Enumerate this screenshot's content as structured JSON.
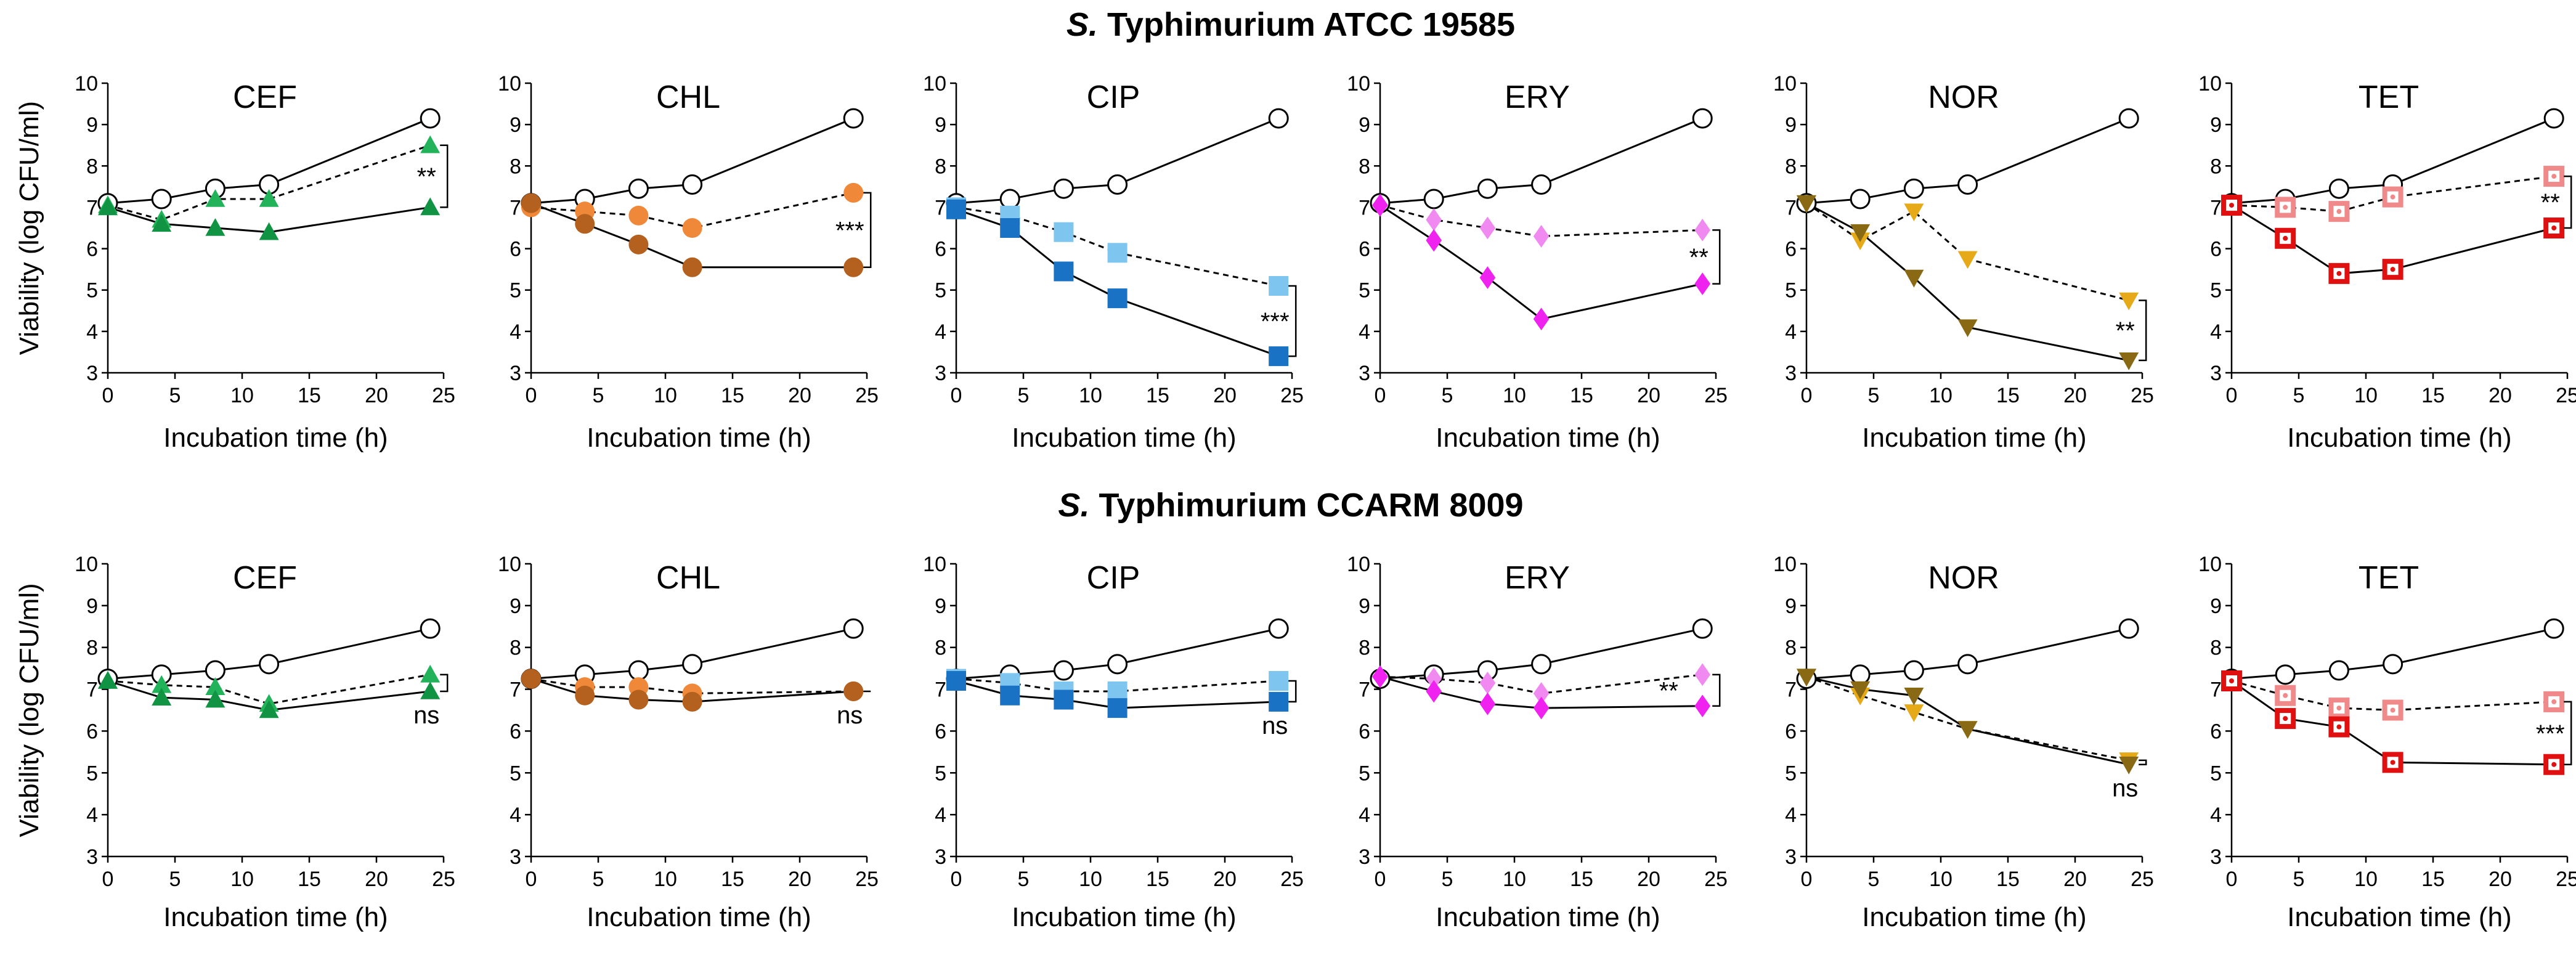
{
  "chart_data": {
    "type": "line",
    "row_titles": [
      {
        "italic": "S.",
        "rest": " Typhimurium ATCC 19585"
      },
      {
        "italic": "S.",
        "rest": " Typhimurium CCARM 8009"
      }
    ],
    "ylabel": "Viability (log CFU/ml)",
    "xlabel": "Incubation time (h)",
    "x": [
      0,
      4,
      8,
      12,
      24
    ],
    "xlim": [
      0,
      25
    ],
    "ylim": [
      3,
      10
    ],
    "xticks": [
      "0",
      "5",
      "10",
      "15",
      "20",
      "25"
    ],
    "yticks": [
      "3",
      "4",
      "5",
      "6",
      "7",
      "8",
      "9",
      "10"
    ],
    "series_legend": {
      "control": "open circles, solid line",
      "treated_before": "light marker, dashed line",
      "treated_after": "dark marker, solid line"
    },
    "rows": [
      {
        "panels": [
          {
            "title": "CEF",
            "marker": "triangle",
            "light_color": "#22b35a",
            "dark_color": "#109443",
            "control": [
              7.1,
              7.2,
              7.45,
              7.55,
              9.15
            ],
            "dashed": [
              7.05,
              6.7,
              7.2,
              7.2,
              8.5
            ],
            "solid": [
              7.0,
              6.6,
              6.5,
              6.4,
              7.0
            ],
            "significance": "**",
            "sig_pos": "right-top"
          },
          {
            "title": "CHL",
            "marker": "circle",
            "light_color": "#f0883a",
            "dark_color": "#b4601e",
            "control": [
              7.1,
              7.2,
              7.45,
              7.55,
              9.15
            ],
            "dashed": [
              7.0,
              6.9,
              6.8,
              6.5,
              7.35
            ],
            "solid": [
              7.1,
              6.6,
              6.1,
              5.55,
              5.55
            ],
            "significance": "***",
            "sig_pos": "right-top"
          },
          {
            "title": "CIP",
            "marker": "square",
            "light_color": "#7ec5f0",
            "dark_color": "#1a72c4",
            "control": [
              7.1,
              7.2,
              7.45,
              7.55,
              9.15
            ],
            "dashed": [
              7.0,
              6.8,
              6.4,
              5.9,
              5.1
            ],
            "solid": [
              6.95,
              6.5,
              5.45,
              4.8,
              3.4
            ],
            "significance": "***",
            "sig_pos": "right-top"
          },
          {
            "title": "ERY",
            "marker": "diamond",
            "light_color": "#f08af0",
            "dark_color": "#ef22ef",
            "control": [
              7.1,
              7.2,
              7.45,
              7.55,
              9.15
            ],
            "dashed": [
              7.05,
              6.7,
              6.5,
              6.3,
              6.45
            ],
            "solid": [
              7.05,
              6.2,
              5.3,
              4.3,
              5.15
            ],
            "significance": "**",
            "sig_pos": "right-top"
          },
          {
            "title": "NOR",
            "marker": "triangle-down",
            "light_color": "#e6aa18",
            "dark_color": "#8a6914",
            "control": [
              7.1,
              7.2,
              7.45,
              7.55,
              9.15
            ],
            "dashed": [
              7.1,
              6.2,
              6.9,
              5.75,
              4.75
            ],
            "solid": [
              7.1,
              6.4,
              5.3,
              4.1,
              3.3
            ],
            "significance": "**",
            "sig_pos": "right-top"
          },
          {
            "title": "TET",
            "marker": "square-open",
            "light_color": "#f08a8a",
            "dark_color": "#e01010",
            "control": [
              7.1,
              7.2,
              7.45,
              7.55,
              9.15
            ],
            "dashed": [
              7.05,
              7.0,
              6.9,
              7.25,
              7.75
            ],
            "solid": [
              7.05,
              6.25,
              5.4,
              5.5,
              6.5
            ],
            "significance": "**",
            "sig_pos": "right-top"
          }
        ]
      },
      {
        "panels": [
          {
            "title": "CEF",
            "marker": "triangle",
            "light_color": "#22b35a",
            "dark_color": "#109443",
            "control": [
              7.25,
              7.35,
              7.45,
              7.6,
              8.45
            ],
            "dashed": [
              7.2,
              7.1,
              7.05,
              6.65,
              7.35
            ],
            "solid": [
              7.2,
              6.8,
              6.75,
              6.5,
              6.95
            ],
            "significance": "ns",
            "sig_pos": "right-bottom"
          },
          {
            "title": "CHL",
            "marker": "circle",
            "light_color": "#f0883a",
            "dark_color": "#b4601e",
            "control": [
              7.25,
              7.35,
              7.45,
              7.6,
              8.45
            ],
            "dashed": [
              7.25,
              7.05,
              7.05,
              6.9,
              6.95
            ],
            "solid": [
              7.25,
              6.85,
              6.75,
              6.7,
              6.95
            ],
            "significance": "ns",
            "sig_pos": "right-bottom"
          },
          {
            "title": "CIP",
            "marker": "square",
            "light_color": "#7ec5f0",
            "dark_color": "#1a72c4",
            "control": [
              7.25,
              7.35,
              7.45,
              7.6,
              8.45
            ],
            "dashed": [
              7.25,
              7.15,
              6.95,
              6.95,
              7.2
            ],
            "solid": [
              7.2,
              6.85,
              6.75,
              6.55,
              6.7
            ],
            "significance": "ns",
            "sig_pos": "right-bottom"
          },
          {
            "title": "ERY",
            "marker": "diamond",
            "light_color": "#f08af0",
            "dark_color": "#ef22ef",
            "control": [
              7.25,
              7.35,
              7.45,
              7.6,
              8.45
            ],
            "dashed": [
              7.3,
              7.25,
              7.15,
              6.9,
              7.35
            ],
            "solid": [
              7.3,
              6.95,
              6.65,
              6.55,
              6.6
            ],
            "significance": "**",
            "sig_pos": "right-middle"
          },
          {
            "title": "NOR",
            "marker": "triangle-down",
            "light_color": "#e6aa18",
            "dark_color": "#8a6914",
            "control": [
              7.25,
              7.35,
              7.45,
              7.6,
              8.45
            ],
            "dashed": [
              7.3,
              6.85,
              6.45,
              6.05,
              5.3
            ],
            "solid": [
              7.3,
              7.0,
              6.85,
              6.05,
              5.2
            ],
            "significance": "ns",
            "sig_pos": "right-bottom"
          },
          {
            "title": "TET",
            "marker": "square-open",
            "light_color": "#f08a8a",
            "dark_color": "#e01010",
            "control": [
              7.25,
              7.35,
              7.45,
              7.6,
              8.45
            ],
            "dashed": [
              7.2,
              6.85,
              6.55,
              6.5,
              6.7
            ],
            "solid": [
              7.2,
              6.3,
              6.1,
              5.25,
              5.2
            ],
            "significance": "***",
            "sig_pos": "right-top"
          }
        ]
      }
    ]
  }
}
